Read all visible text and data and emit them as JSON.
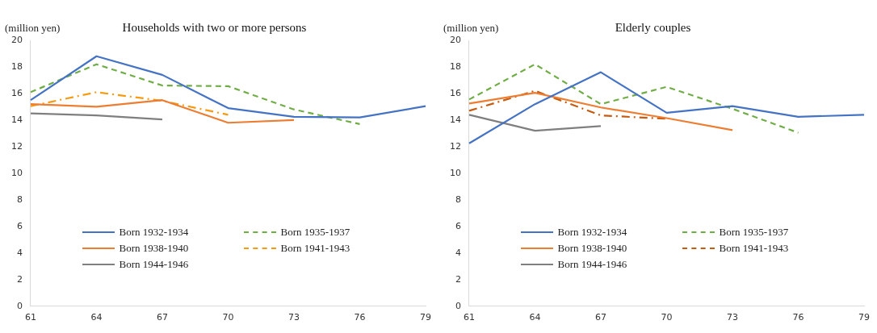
{
  "chart_data": [
    {
      "type": "line",
      "title": "Households with two or more persons",
      "ylabel": "(million yen)",
      "categories": [
        "61",
        "64",
        "67",
        "70",
        "73",
        "76",
        "79"
      ],
      "ylim": [
        0,
        20
      ],
      "yticks": [
        0,
        2,
        4,
        6,
        8,
        10,
        12,
        14,
        16,
        18,
        20
      ],
      "grid": false,
      "legend": "bottom",
      "marker": "none",
      "series": [
        {
          "name": "Born 1932-1934",
          "color": "#4472c4",
          "line_style": "solid",
          "values": [
            15.5,
            18.8,
            17.4,
            14.9,
            14.25,
            14.2,
            15.05
          ]
        },
        {
          "name": "Born 1935-1937",
          "color": "#70ad47",
          "line_style": "dashed",
          "values": [
            16.1,
            18.2,
            16.6,
            16.55,
            14.8,
            13.7,
            null
          ]
        },
        {
          "name": "Born 1938-1940",
          "color": "#ed7d31",
          "line_style": "solid",
          "values": [
            15.2,
            15.0,
            15.5,
            13.8,
            14.0,
            null,
            null
          ]
        },
        {
          "name": "Born 1941-1943",
          "color": "#f59a12",
          "line_style": "dashdot",
          "values": [
            15.05,
            16.1,
            15.45,
            14.4,
            null,
            null,
            null
          ]
        },
        {
          "name": "Born 1944-1946",
          "color": "#7f7f7f",
          "line_style": "solid",
          "values": [
            14.5,
            14.35,
            14.05,
            null,
            null,
            null,
            null
          ]
        }
      ]
    },
    {
      "type": "line",
      "title": "Elderly couples",
      "ylabel": "(million yen)",
      "categories": [
        "61",
        "64",
        "67",
        "70",
        "73",
        "76",
        "79"
      ],
      "ylim": [
        0,
        20
      ],
      "yticks": [
        0,
        2,
        4,
        6,
        8,
        10,
        12,
        14,
        16,
        18,
        20
      ],
      "grid": false,
      "legend": "bottom",
      "marker": "none",
      "series": [
        {
          "name": "Born 1932-1934",
          "color": "#4472c4",
          "line_style": "solid",
          "values": [
            12.25,
            15.2,
            17.6,
            14.55,
            15.05,
            14.25,
            14.4
          ]
        },
        {
          "name": "Born 1935-1937",
          "color": "#70ad47",
          "line_style": "dashed",
          "values": [
            15.55,
            18.2,
            15.2,
            16.5,
            14.85,
            13.05,
            null
          ]
        },
        {
          "name": "Born 1938-1940",
          "color": "#ed7d31",
          "line_style": "solid",
          "values": [
            15.25,
            16.05,
            14.95,
            14.15,
            13.25,
            null,
            null
          ]
        },
        {
          "name": "Born 1941-1943",
          "color": "#c55a11",
          "line_style": "dashdot",
          "values": [
            14.7,
            16.2,
            14.35,
            14.1,
            null,
            null,
            null
          ]
        },
        {
          "name": "Born 1944-1946",
          "color": "#7f7f7f",
          "line_style": "solid",
          "values": [
            14.4,
            13.2,
            13.55,
            null,
            null,
            null,
            null
          ]
        }
      ]
    }
  ]
}
